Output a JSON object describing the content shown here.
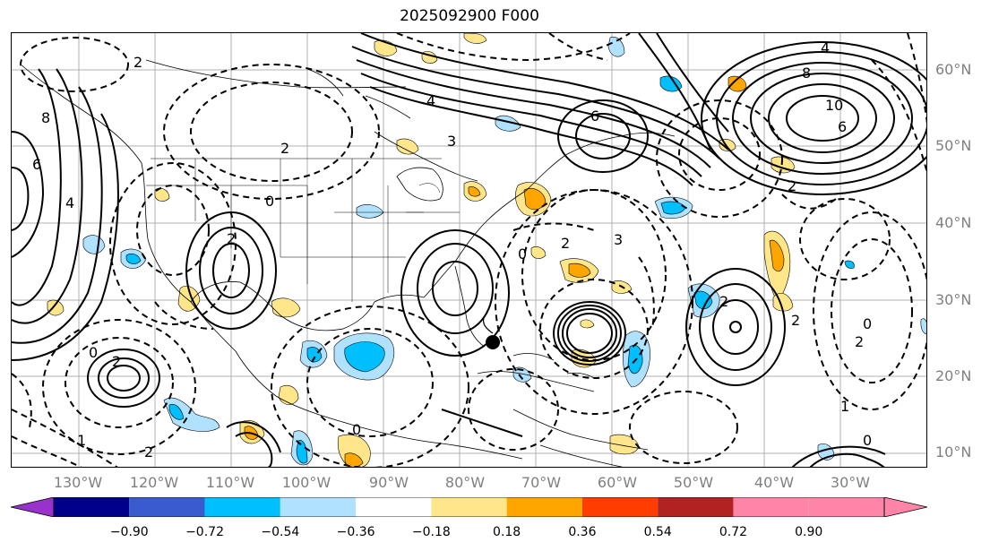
{
  "title": "2025092900 F000",
  "map": {
    "lat_labels": [
      "60°N",
      "50°N",
      "40°N",
      "30°N",
      "20°N",
      "10°N"
    ],
    "lon_labels": [
      "130°W",
      "120°W",
      "110°W",
      "100°W",
      "90°W",
      "80°W",
      "70°W",
      "60°W",
      "50°W",
      "40°W",
      "30°W"
    ],
    "contour_labels": [
      {
        "text": "2"
      },
      {
        "text": "8"
      },
      {
        "text": "6"
      },
      {
        "text": "4"
      },
      {
        "text": "2"
      },
      {
        "text": "0"
      },
      {
        "text": "2"
      },
      {
        "text": "4"
      },
      {
        "text": "3"
      },
      {
        "text": "6"
      },
      {
        "text": "4"
      },
      {
        "text": "8"
      },
      {
        "text": "10"
      },
      {
        "text": "6"
      },
      {
        "text": "2"
      },
      {
        "text": "3"
      },
      {
        "text": "2"
      },
      {
        "text": "0"
      },
      {
        "text": "2"
      },
      {
        "text": "2"
      },
      {
        "text": "0"
      },
      {
        "text": "1"
      },
      {
        "text": "2"
      },
      {
        "text": "0"
      },
      {
        "text": "2"
      },
      {
        "text": "2"
      },
      {
        "text": "0"
      },
      {
        "text": "1"
      },
      {
        "text": "0"
      }
    ]
  },
  "colorbar": {
    "ticks": [
      "−0.90",
      "−0.72",
      "−0.54",
      "−0.36",
      "−0.18",
      "0.18",
      "0.36",
      "0.54",
      "0.72",
      "0.90"
    ],
    "colors": [
      "#9932CC",
      "#00008B",
      "#3A5BCF",
      "#00BFFF",
      "#B0E2FF",
      "#FFFFFF",
      "#FFE68A",
      "#FFA500",
      "#FF3D00",
      "#B22222",
      "#FF85A8",
      "#FF85A8"
    ]
  }
}
